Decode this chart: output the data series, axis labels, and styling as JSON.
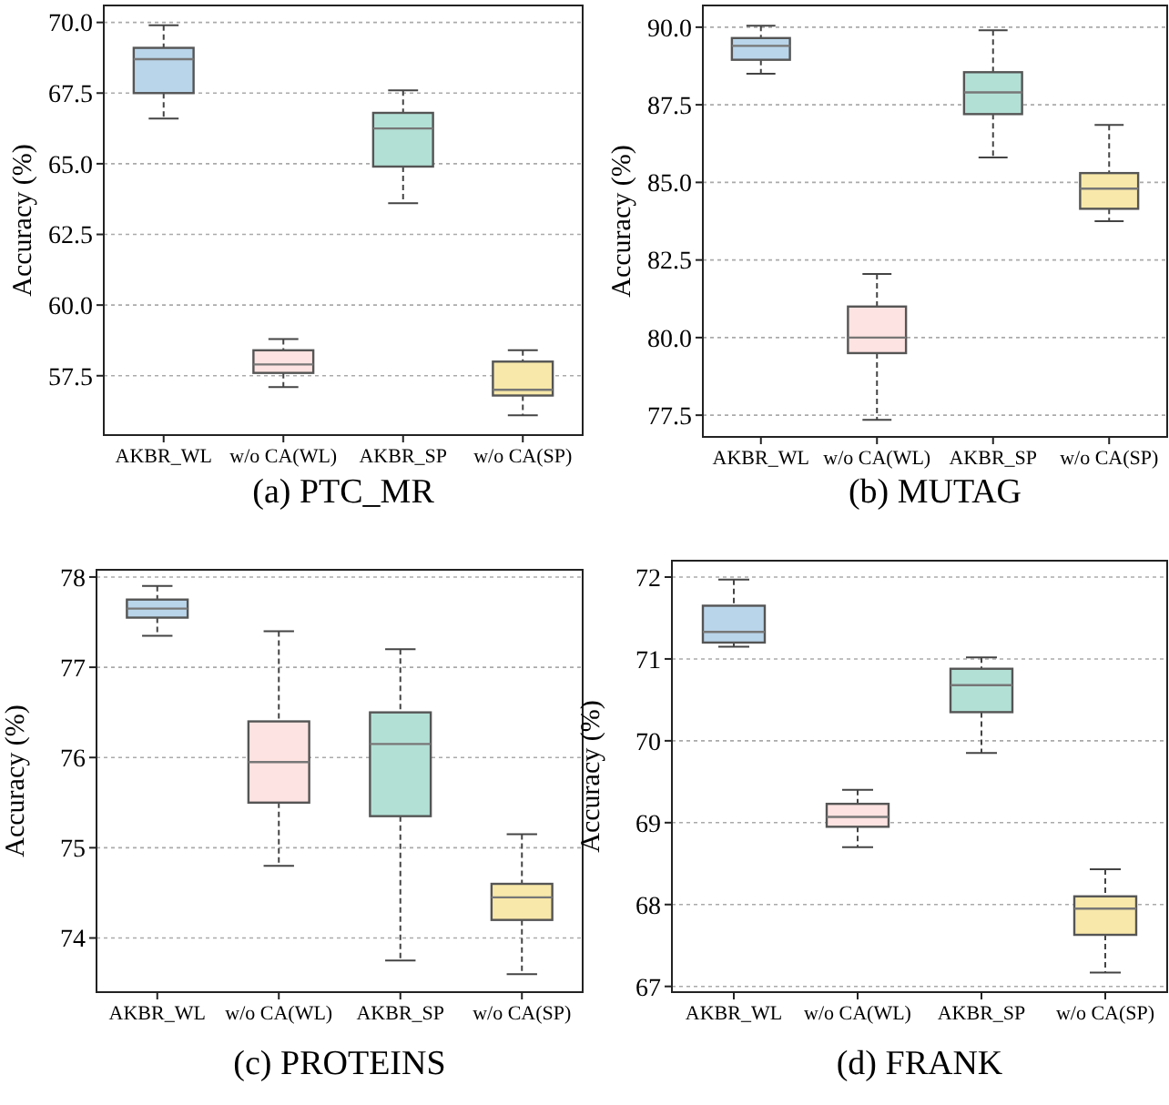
{
  "chart_data": [
    {
      "type": "box",
      "title": "(a) PTC_MR",
      "ylabel": "Accuracy (%)",
      "categories": [
        "AKBR_WL",
        "w/o CA(WL)",
        "AKBR_SP",
        "w/o CA(SP)"
      ],
      "colors": [
        "#b9d5ea",
        "#fde3e1",
        "#b3e0d5",
        "#f8e8a9"
      ],
      "grid": "y",
      "ylim": [
        55.4,
        70.6
      ],
      "yticks": [
        {
          "value": 57.5,
          "label": "57.5"
        },
        {
          "value": 60,
          "label": "60.0"
        },
        {
          "value": 62.5,
          "label": "62.5"
        },
        {
          "value": 65,
          "label": "65.0"
        },
        {
          "value": 67.5,
          "label": "67.5"
        },
        {
          "value": 70,
          "label": "70.0"
        }
      ],
      "boxes": [
        {
          "low": 66.6,
          "q1": 67.5,
          "median": 68.7,
          "q3": 69.1,
          "high": 69.9
        },
        {
          "low": 57.1,
          "q1": 57.6,
          "median": 57.9,
          "q3": 58.4,
          "high": 58.8
        },
        {
          "low": 63.6,
          "q1": 64.9,
          "median": 66.25,
          "q3": 66.8,
          "high": 67.6
        },
        {
          "low": 56.1,
          "q1": 56.8,
          "median": 57.0,
          "q3": 58.0,
          "high": 58.4
        }
      ]
    },
    {
      "type": "box",
      "title": "(b) MUTAG",
      "ylabel": "Accuracy (%)",
      "categories": [
        "AKBR_WL",
        "w/o CA(WL)",
        "AKBR_SP",
        "w/o CA(SP)"
      ],
      "colors": [
        "#b9d5ea",
        "#fde3e1",
        "#b3e0d5",
        "#f8e8a9"
      ],
      "grid": "y",
      "ylim": [
        76.8,
        90.7
      ],
      "yticks": [
        {
          "value": 77.5,
          "label": "77.5"
        },
        {
          "value": 80,
          "label": "80.0"
        },
        {
          "value": 82.5,
          "label": "82.5"
        },
        {
          "value": 85,
          "label": "85.0"
        },
        {
          "value": 87.5,
          "label": "87.5"
        },
        {
          "value": 90,
          "label": "90.0"
        }
      ],
      "boxes": [
        {
          "low": 88.5,
          "q1": 88.95,
          "median": 89.4,
          "q3": 89.65,
          "high": 90.05
        },
        {
          "low": 77.35,
          "q1": 79.5,
          "median": 80.0,
          "q3": 81.0,
          "high": 82.05
        },
        {
          "low": 85.8,
          "q1": 87.2,
          "median": 87.9,
          "q3": 88.55,
          "high": 89.9
        },
        {
          "low": 83.75,
          "q1": 84.15,
          "median": 84.8,
          "q3": 85.3,
          "high": 86.85
        }
      ]
    },
    {
      "type": "box",
      "title": "(c) PROTEINS",
      "ylabel": "Accuracy (%)",
      "categories": [
        "AKBR_WL",
        "w/o CA(WL)",
        "AKBR_SP",
        "w/o CA(SP)"
      ],
      "colors": [
        "#b9d5ea",
        "#fde3e1",
        "#b3e0d5",
        "#f8e8a9"
      ],
      "grid": "y",
      "ylim": [
        73.4,
        78.08
      ],
      "yticks": [
        74,
        75,
        76,
        77,
        78
      ],
      "boxes": [
        {
          "low": 77.35,
          "q1": 77.55,
          "median": 77.65,
          "q3": 77.75,
          "high": 77.9
        },
        {
          "low": 74.8,
          "q1": 75.5,
          "median": 75.95,
          "q3": 76.4,
          "high": 77.4
        },
        {
          "low": 73.75,
          "q1": 75.35,
          "median": 76.15,
          "q3": 76.5,
          "high": 77.2
        },
        {
          "low": 73.6,
          "q1": 74.2,
          "median": 74.45,
          "q3": 74.6,
          "high": 75.15
        }
      ]
    },
    {
      "type": "box",
      "title": "(d) FRANK",
      "ylabel": "Accuracy (%)",
      "categories": [
        "AKBR_WL",
        "w/o CA(WL)",
        "AKBR_SP",
        "w/o CA(SP)"
      ],
      "colors": [
        "#b9d5ea",
        "#fde3e1",
        "#b3e0d5",
        "#f8e8a9"
      ],
      "grid": "y",
      "ylim": [
        66.93,
        72.2
      ],
      "yticks": [
        67,
        68,
        69,
        70,
        71,
        72
      ],
      "boxes": [
        {
          "low": 71.15,
          "q1": 71.2,
          "median": 71.33,
          "q3": 71.65,
          "high": 71.97
        },
        {
          "low": 68.7,
          "q1": 68.95,
          "median": 69.07,
          "q3": 69.23,
          "high": 69.4
        },
        {
          "low": 69.85,
          "q1": 70.35,
          "median": 70.68,
          "q3": 70.88,
          "high": 71.02
        },
        {
          "low": 67.17,
          "q1": 67.63,
          "median": 67.95,
          "q3": 68.1,
          "high": 68.43
        }
      ]
    }
  ]
}
